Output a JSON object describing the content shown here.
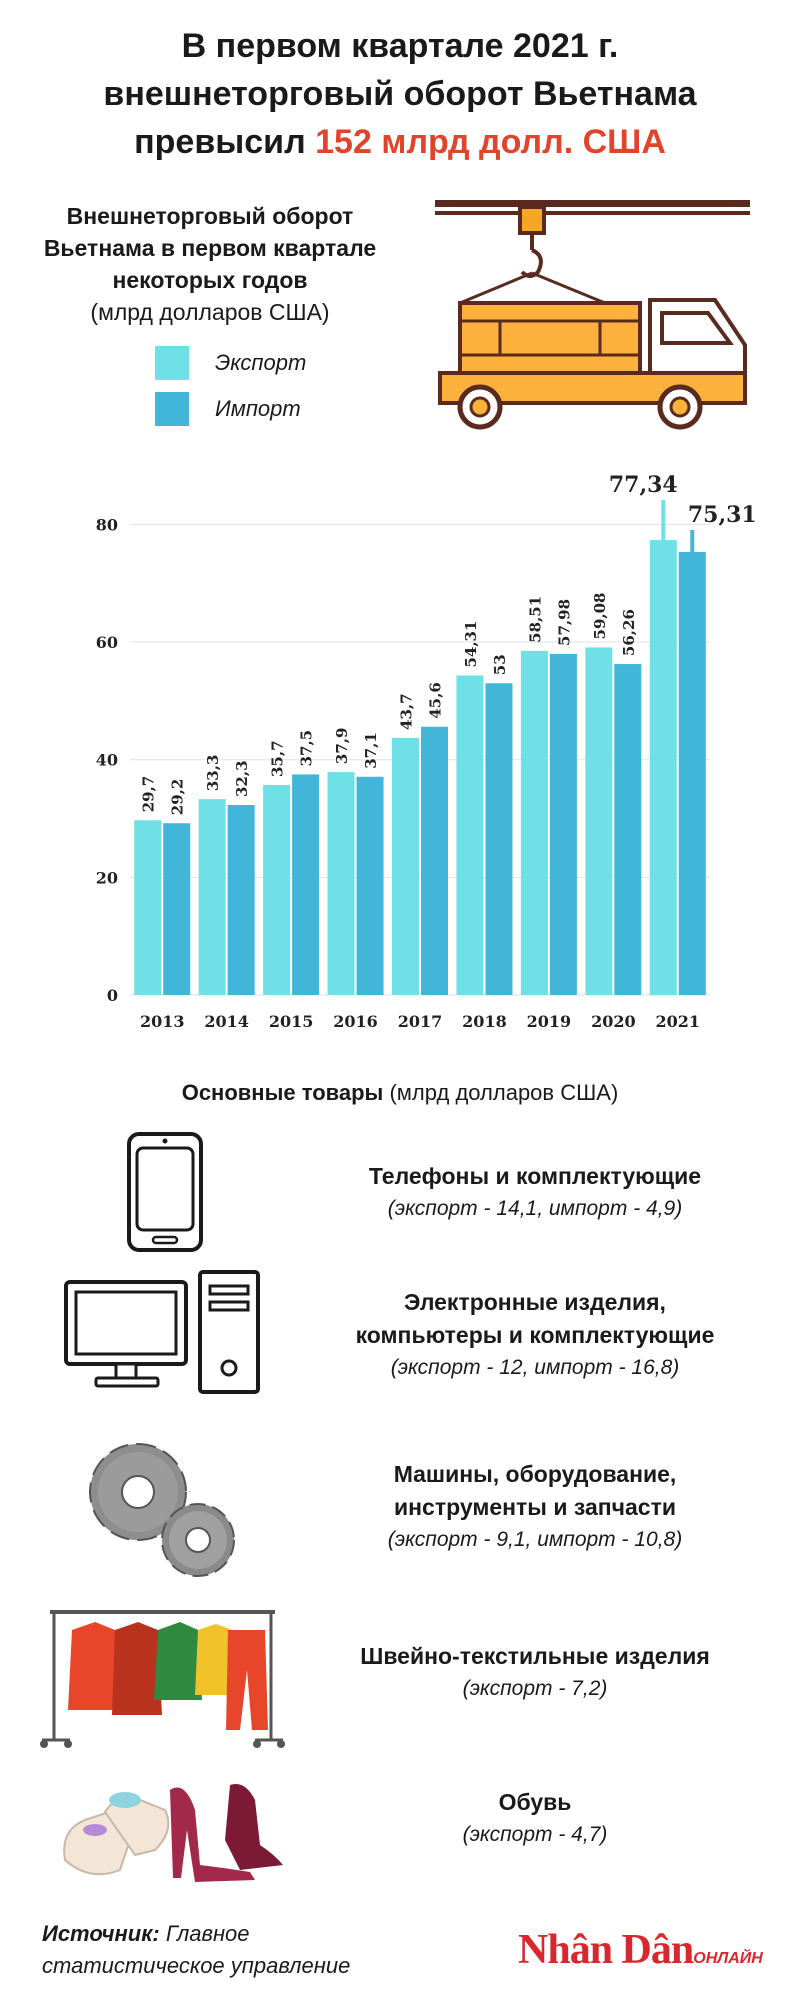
{
  "header": {
    "title_line1": "В первом квартале 2021 г.",
    "title_line2": "внешнеторговый оборот Вьетнама",
    "title_line3_prefix": "превысил",
    "title_highlight": "152 млрд долл. США",
    "highlight_color": "#e0452c"
  },
  "chart_data": {
    "type": "bar",
    "title": "Внешнеторговый оборот Вьетнама в первом квартале некоторых годов",
    "unit": "(млрд долларов США)",
    "categories": [
      "2013",
      "2014",
      "2015",
      "2016",
      "2017",
      "2018",
      "2019",
      "2020",
      "2021"
    ],
    "series": [
      {
        "name": "Экспорт",
        "color": "#6fe0e6",
        "values": [
          29.7,
          33.3,
          35.7,
          37.9,
          43.7,
          54.31,
          58.51,
          59.08,
          77.34
        ],
        "labels": [
          "29,7",
          "33,3",
          "35,7",
          "37,9",
          "43,7",
          "54,31",
          "58,51",
          "59,08",
          "77,34"
        ]
      },
      {
        "name": "Импорт",
        "color": "#41b6d8",
        "values": [
          29.2,
          32.3,
          37.5,
          37.1,
          45.6,
          53,
          57.98,
          56.26,
          75.31
        ],
        "labels": [
          "29,2",
          "32,3",
          "37,5",
          "37,1",
          "45,6",
          "53",
          "57,98",
          "56,26",
          "75,31"
        ]
      }
    ],
    "yticks": [
      0,
      20,
      40,
      60,
      80
    ],
    "ylim": [
      0,
      85
    ],
    "grid": true,
    "legend_position": "top-left"
  },
  "goods": {
    "title": "Основные товары",
    "unit": "(млрд долларов США)",
    "items": [
      {
        "icon": "smartphone-icon",
        "name_lines": [
          "Телефоны и комплектующие"
        ],
        "values": "(экспорт - 14,1, импорт - 4,9)"
      },
      {
        "icon": "computer-icon",
        "name_lines": [
          "Электронные изделия,",
          "компьютеры и комплектующие"
        ],
        "values": "(экспорт - 12, импорт - 16,8)"
      },
      {
        "icon": "gears-icon",
        "name_lines": [
          "Машины, оборудование,",
          "инструменты и запчасти"
        ],
        "values": "(экспорт - 9,1, импорт - 10,8)"
      },
      {
        "icon": "clothes-rack-icon",
        "name_lines": [
          "Швейно-текстильные изделия"
        ],
        "values": "(экспорт - 7,2)"
      },
      {
        "icon": "shoes-icon",
        "name_lines": [
          "Обувь"
        ],
        "values": "(экспорт - 4,7)"
      }
    ]
  },
  "footer": {
    "source_label": "Источник:",
    "source_text": "Главное статистическое управление",
    "logo_text": "Nhân Dân",
    "logo_sub": "ОНЛАЙН"
  }
}
